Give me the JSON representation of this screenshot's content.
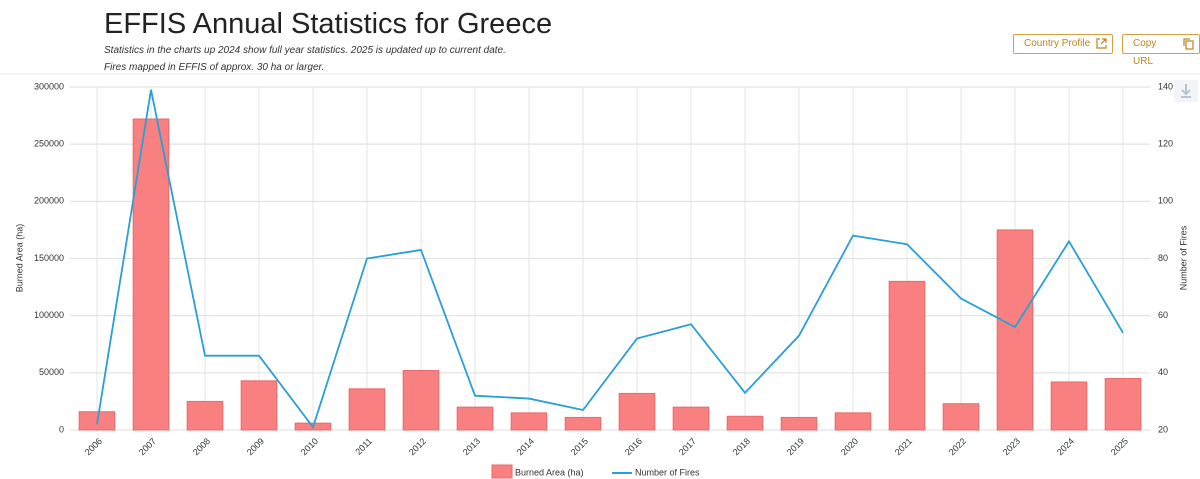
{
  "header": {
    "title": "EFFIS Annual Statistics for Greece",
    "subtitle_lines": [
      "Statistics in the charts up 2024 show full year statistics. 2025 is updated up to current date.",
      "Fires mapped in EFFIS of approx. 30 ha or larger."
    ],
    "buttons": [
      "Country Profile",
      "Copy URL"
    ]
  },
  "chart_data": {
    "type": "combo",
    "categories": [
      "2006",
      "2007",
      "2008",
      "2009",
      "2010",
      "2011",
      "2012",
      "2013",
      "2014",
      "2015",
      "2016",
      "2017",
      "2018",
      "2019",
      "2020",
      "2021",
      "2022",
      "2023",
      "2024",
      "2025"
    ],
    "series": [
      {
        "name": "Burned Area (ha)",
        "type": "bar",
        "color": "#f88080",
        "values": [
          16000,
          272000,
          25000,
          43000,
          6000,
          36000,
          52000,
          20000,
          15000,
          11000,
          32000,
          20000,
          12000,
          11000,
          15000,
          130000,
          23000,
          175000,
          42000,
          45000
        ]
      },
      {
        "name": "Number of Fires",
        "type": "line",
        "axis": "y2",
        "color": "#2a9fd6",
        "values": [
          22,
          139,
          46,
          46,
          21,
          80,
          83,
          32,
          31,
          27,
          52,
          57,
          33,
          53,
          88,
          85,
          66,
          56,
          86,
          54
        ]
      }
    ],
    "ylabel": "Burned Area (ha)",
    "y2label": "Number of Fires",
    "ylim": [
      0,
      300000
    ],
    "yticks": [
      0,
      50000,
      100000,
      150000,
      200000,
      250000,
      300000
    ],
    "y2lim": [
      20,
      140
    ],
    "y2ticks": [
      20,
      40,
      60,
      80,
      100,
      120,
      140
    ],
    "grid": true
  }
}
